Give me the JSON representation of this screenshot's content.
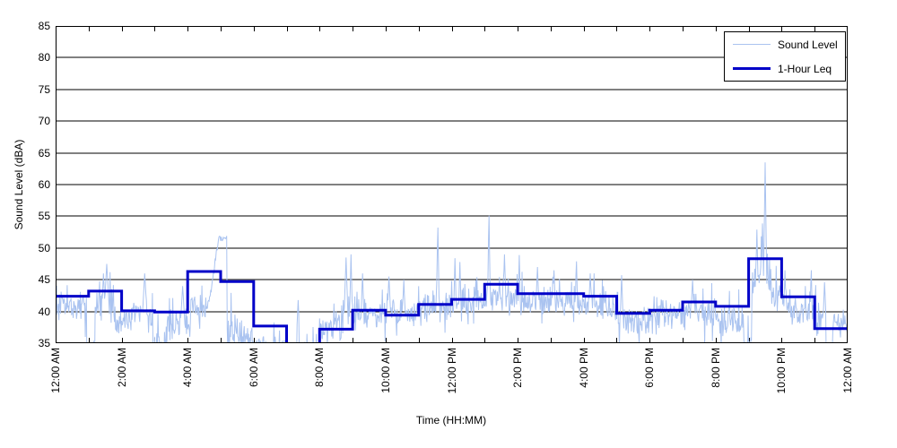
{
  "figure": {
    "xlabel": "Time (HH:MM)",
    "ylabel": "Sound Level (dBA)",
    "background_color": "#ffffff",
    "grid_color": "#000000",
    "axis_color": "#000000"
  },
  "legend": {
    "position": "top-right",
    "items": [
      {
        "label": "Sound Level",
        "color": "#aac3f0",
        "line_width": 1
      },
      {
        "label": "1-Hour Leq",
        "color": "#0000c8",
        "line_width": 3
      }
    ]
  },
  "axes": {
    "ylim": [
      35,
      85
    ],
    "y_tick_step": 5,
    "y_tick_labels": [
      "35",
      "40",
      "45",
      "50",
      "55",
      "60",
      "65",
      "70",
      "75",
      "80",
      "85"
    ],
    "xlim_hours": [
      0,
      24
    ],
    "x_minor_tick_every_hours": 1,
    "x_label_every_hours": 2,
    "x_tick_labels": [
      "12:00 AM",
      "2:00 AM",
      "4:00 AM",
      "6:00 AM",
      "8:00 AM",
      "10:00 AM",
      "12:00 PM",
      "2:00 PM",
      "4:00 PM",
      "6:00 PM",
      "8:00 PM",
      "10:00 PM",
      "12:00 AM"
    ]
  },
  "chart_data": {
    "type": "line",
    "title": "",
    "xlabel": "Time (HH:MM)",
    "ylabel": "Sound Level (dBA)",
    "ylim": [
      35,
      85
    ],
    "x_hours_range": [
      0,
      24
    ],
    "grid": "horizontal-solid-black",
    "legend_position": "top-right-inside",
    "series": [
      {
        "name": "1-Hour Leq",
        "style": "step",
        "color": "#0000c8",
        "line_width": 3,
        "hourly_leq_dba": [
          42.4,
          43.2,
          40.1,
          39.9,
          46.3,
          44.7,
          37.7,
          null,
          37.2,
          40.2,
          39.4,
          41.1,
          41.9,
          44.3,
          42.8,
          42.8,
          42.4,
          39.7,
          40.2,
          41.5,
          40.8,
          48.3,
          42.3,
          37.3
        ],
        "note": "hour starting 7:00 AM is below the 35 dBA axis and not visible"
      },
      {
        "name": "Sound Level",
        "style": "noisy_line",
        "color": "#aac3f0",
        "line_width": 1,
        "band_segments_hours_lo_hi": [
          [
            0.0,
            0.95,
            37.5,
            45.5
          ],
          [
            0.95,
            1.2,
            27,
            38
          ],
          [
            1.2,
            1.8,
            36,
            46.5
          ],
          [
            1.8,
            2.3,
            34.5,
            43
          ],
          [
            2.3,
            2.95,
            35,
            45.5
          ],
          [
            2.95,
            3.35,
            30.5,
            40
          ],
          [
            3.35,
            4.1,
            33,
            43.5
          ],
          [
            4.1,
            4.6,
            36.5,
            45.5
          ],
          [
            4.6,
            5.19,
            42,
            51.9
          ],
          [
            5.19,
            5.55,
            32,
            43
          ],
          [
            5.55,
            6.0,
            31.5,
            40.5
          ],
          [
            6.0,
            7.0,
            31,
            38.5
          ],
          [
            7.0,
            7.55,
            28,
            35.5
          ],
          [
            7.55,
            8.0,
            30,
            38
          ],
          [
            8.0,
            8.7,
            34,
            43
          ],
          [
            8.7,
            9.2,
            35.5,
            45
          ],
          [
            9.2,
            10.0,
            36,
            44.5
          ],
          [
            10.0,
            11.0,
            36,
            44.5
          ],
          [
            11.0,
            11.9,
            37,
            45
          ],
          [
            11.9,
            12.4,
            37.5,
            46
          ],
          [
            12.4,
            13.0,
            38,
            46
          ],
          [
            13.0,
            14.3,
            38.5,
            47
          ],
          [
            14.3,
            15.6,
            38,
            46.5
          ],
          [
            15.6,
            16.6,
            37.5,
            46.5
          ],
          [
            16.6,
            17.05,
            37,
            45.5
          ],
          [
            17.05,
            18.0,
            35,
            42.5
          ],
          [
            18.0,
            19.1,
            36,
            44
          ],
          [
            19.1,
            20.1,
            36.5,
            44.5
          ],
          [
            20.1,
            20.85,
            35,
            43.5
          ],
          [
            20.85,
            21.1,
            30,
            40
          ],
          [
            21.1,
            21.7,
            40,
            52
          ],
          [
            21.7,
            22.15,
            38.5,
            48
          ],
          [
            22.15,
            23.05,
            36.5,
            44.5
          ],
          [
            23.05,
            23.35,
            35,
            43
          ],
          [
            23.35,
            23.55,
            30,
            36
          ],
          [
            23.55,
            24.01,
            35,
            41.5
          ]
        ],
        "spike_events_hour_peak_halfwidthmin": [
          [
            1.45,
            46,
            4
          ],
          [
            1.55,
            47.5,
            6
          ],
          [
            2.7,
            46,
            5
          ],
          [
            3.85,
            44,
            4
          ],
          [
            7.35,
            41.8,
            2
          ],
          [
            8.8,
            48.5,
            4
          ],
          [
            8.95,
            49,
            3
          ],
          [
            9.3,
            46,
            3
          ],
          [
            10.1,
            45.5,
            4
          ],
          [
            10.55,
            45,
            3
          ],
          [
            11.58,
            54.3,
            3
          ],
          [
            12.1,
            48.4,
            3
          ],
          [
            12.25,
            47.8,
            3
          ],
          [
            13.13,
            56.3,
            3
          ],
          [
            13.6,
            49,
            4
          ],
          [
            14.05,
            48.9,
            3
          ],
          [
            14.6,
            47,
            4
          ],
          [
            15.1,
            46.5,
            4
          ],
          [
            15.78,
            48.6,
            3
          ],
          [
            16.2,
            46,
            4
          ],
          [
            17.15,
            45.7,
            3
          ],
          [
            19.3,
            45,
            4
          ],
          [
            21.25,
            52.9,
            4
          ],
          [
            21.42,
            55,
            3
          ],
          [
            21.5,
            63.5,
            4
          ],
          [
            22.1,
            46.5,
            3
          ],
          [
            22.9,
            46.5,
            2
          ],
          [
            23.3,
            44.6,
            3
          ]
        ],
        "smooth_peak": {
          "start": 4.6,
          "peak_time": 5.0,
          "end": 5.19,
          "base": 41,
          "peak": 51.9
        }
      }
    ]
  }
}
